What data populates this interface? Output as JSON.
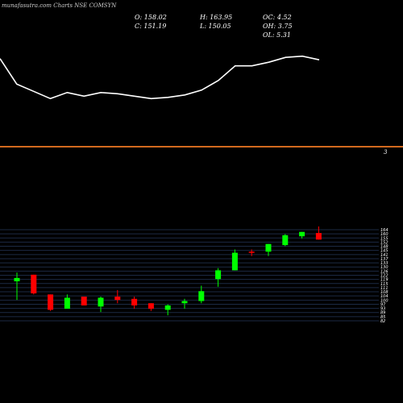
{
  "header": {
    "watermark": "munafasutra.com Charts NSE COMSYN",
    "open_label": "O: 158.02",
    "close_label": "C: 151.19",
    "high_label": "H: 163.95",
    "low_label": "L: 150.05",
    "oc_label": "OC: 4.52",
    "oh_label": "OH: 3.75",
    "ol_label": "OL: 5.31"
  },
  "divider_label": "3",
  "colors": {
    "background": "#000000",
    "up": "#00ff00",
    "down": "#ff0000",
    "line": "#ffffff",
    "divider": "#d2691e",
    "grid": "#1c2a44"
  },
  "chart_data": [
    {
      "type": "line",
      "description_units": "relative indicator",
      "x": [
        0,
        1,
        2,
        3,
        4,
        5,
        6,
        7,
        8,
        9,
        10,
        11,
        12,
        13,
        14,
        15,
        16,
        17,
        18,
        19
      ],
      "values": [
        125,
        146,
        152,
        158,
        153,
        156,
        153,
        154,
        156,
        158,
        157,
        155,
        151,
        143,
        131,
        131,
        128,
        124,
        123,
        126
      ],
      "ylim": [
        90,
        195
      ]
    },
    {
      "type": "candlestick",
      "ylim": [
        82,
        165
      ],
      "y_ticks": [
        164,
        160,
        155,
        152,
        148,
        145,
        141,
        137,
        133,
        130,
        126,
        122,
        119,
        115,
        111,
        108,
        104,
        100,
        97,
        93,
        89,
        85,
        82
      ],
      "candles": [
        {
          "o": 118,
          "h": 126,
          "l": 101,
          "c": 121,
          "dir": "up"
        },
        {
          "o": 124,
          "h": 124,
          "l": 106,
          "c": 107,
          "dir": "down"
        },
        {
          "o": 106,
          "h": 106,
          "l": 91,
          "c": 92,
          "dir": "down"
        },
        {
          "o": 93,
          "h": 106,
          "l": 93,
          "c": 103,
          "dir": "up"
        },
        {
          "o": 104,
          "h": 104,
          "l": 96,
          "c": 96,
          "dir": "down"
        },
        {
          "o": 95,
          "h": 104,
          "l": 90,
          "c": 103,
          "dir": "up"
        },
        {
          "o": 104,
          "h": 110,
          "l": 98,
          "c": 101,
          "dir": "down"
        },
        {
          "o": 102,
          "h": 104,
          "l": 93,
          "c": 96,
          "dir": "down"
        },
        {
          "o": 98,
          "h": 98,
          "l": 91,
          "c": 93,
          "dir": "down"
        },
        {
          "o": 92,
          "h": 97,
          "l": 87,
          "c": 96,
          "dir": "up"
        },
        {
          "o": 98,
          "h": 102,
          "l": 93,
          "c": 100,
          "dir": "up"
        },
        {
          "o": 100,
          "h": 114,
          "l": 98,
          "c": 109,
          "dir": "up"
        },
        {
          "o": 120,
          "h": 130,
          "l": 113,
          "c": 128,
          "dir": "up"
        },
        {
          "o": 128,
          "h": 147,
          "l": 128,
          "c": 144,
          "dir": "up"
        },
        {
          "o": 145,
          "h": 147,
          "l": 141,
          "c": 144,
          "dir": "down"
        },
        {
          "o": 145,
          "h": 152,
          "l": 141,
          "c": 152,
          "dir": "up"
        },
        {
          "o": 151,
          "h": 161,
          "l": 150,
          "c": 160,
          "dir": "up"
        },
        {
          "o": 159,
          "h": 163,
          "l": 157,
          "c": 163,
          "dir": "up"
        },
        {
          "o": 162,
          "h": 168,
          "l": 156,
          "c": 156,
          "dir": "down"
        }
      ]
    }
  ]
}
